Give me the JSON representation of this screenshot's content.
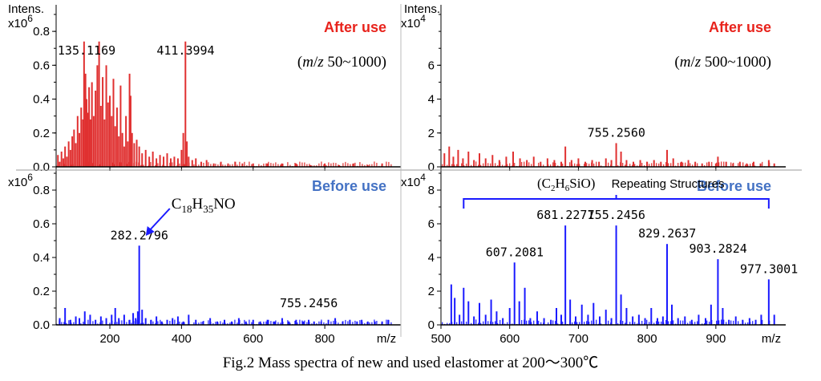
{
  "caption": "Fig.2 Mass spectra of new and used elastomer at 200～300℃",
  "chart_data": [
    {
      "type": "bar",
      "panel": "top-left",
      "condition": "After use",
      "range_note": "(m/z 50~1000)",
      "range_prefix": "(",
      "range_m": "m",
      "range_slash": "/",
      "range_z": "z",
      "range_rest": " 50~1000)",
      "ylabel": "Intens.",
      "y_multiplier": "x10",
      "y_multiplier_exp": "6",
      "xlabel": "m/z",
      "xlim": [
        50,
        990
      ],
      "ylim": [
        0,
        0.9
      ],
      "xticks": [
        "200",
        "400",
        "600",
        "800"
      ],
      "xtick_values": [
        200,
        400,
        600,
        800
      ],
      "yticks": [
        "0.0",
        "0.2",
        "0.4",
        "0.6",
        "0.8"
      ],
      "ytick_values": [
        0.0,
        0.2,
        0.4,
        0.6,
        0.8
      ],
      "color": "#e03030",
      "labels": [
        {
          "text": "135.1169",
          "x": 135.1169,
          "y": 0.8
        },
        {
          "text": "411.3994",
          "x": 411.3994,
          "y": 0.8
        }
      ],
      "peaks": {
        "x": [
          55,
          60,
          65,
          70,
          75,
          80,
          85,
          90,
          95,
          100,
          105,
          110,
          115,
          120,
          125,
          128,
          132,
          135,
          138,
          142,
          146,
          150,
          155,
          160,
          165,
          170,
          175,
          180,
          185,
          190,
          195,
          200,
          205,
          210,
          215,
          220,
          225,
          230,
          235,
          240,
          245,
          250,
          255,
          258,
          262,
          268,
          275,
          282,
          290,
          300,
          310,
          320,
          330,
          340,
          350,
          360,
          370,
          380,
          390,
          400,
          405,
          411,
          415,
          420,
          430,
          440,
          455,
          470,
          490,
          510,
          530,
          550,
          570,
          600,
          640,
          680,
          720,
          760,
          800,
          840,
          880,
          920,
          960
        ],
        "y": [
          0.07,
          0.03,
          0.09,
          0.05,
          0.12,
          0.06,
          0.15,
          0.1,
          0.18,
          0.22,
          0.14,
          0.3,
          0.2,
          0.35,
          0.28,
          0.74,
          0.55,
          0.4,
          0.32,
          0.47,
          0.28,
          0.5,
          0.3,
          0.45,
          0.6,
          0.74,
          0.36,
          0.53,
          0.28,
          0.6,
          0.38,
          0.42,
          0.3,
          0.52,
          0.24,
          0.35,
          0.18,
          0.48,
          0.2,
          0.12,
          0.3,
          0.15,
          0.55,
          0.42,
          0.2,
          0.14,
          0.16,
          0.12,
          0.08,
          0.1,
          0.06,
          0.09,
          0.05,
          0.07,
          0.06,
          0.08,
          0.05,
          0.06,
          0.05,
          0.1,
          0.2,
          0.74,
          0.15,
          0.06,
          0.04,
          0.05,
          0.03,
          0.04,
          0.02,
          0.03,
          0.02,
          0.03,
          0.02,
          0.02,
          0.02,
          0.02,
          0.02,
          0.01,
          0.02,
          0.01,
          0.02,
          0.01,
          0.02
        ]
      }
    },
    {
      "type": "bar",
      "panel": "bottom-left",
      "condition": "Before use",
      "ylabel": "",
      "y_multiplier": "x10",
      "y_multiplier_exp": "6",
      "xlabel": "m/z",
      "xlim": [
        50,
        990
      ],
      "ylim": [
        0,
        0.9
      ],
      "xticks": [
        "200",
        "400",
        "600",
        "800"
      ],
      "xtick_values": [
        200,
        400,
        600,
        800
      ],
      "yticks": [
        "0.0",
        "0.2",
        "0.4",
        "0.6",
        "0.8"
      ],
      "ytick_values": [
        0.0,
        0.2,
        0.4,
        0.6,
        0.8
      ],
      "color": "#1a1aff",
      "labels": [
        {
          "text": "282.2796",
          "x": 282.2796,
          "y": 0.47
        },
        {
          "text": "755.2456",
          "x": 755.2456,
          "y": 0.03
        }
      ],
      "annotation": {
        "formula": "C18H35NO",
        "c": "C",
        "c_sub": "18",
        "h": "H",
        "h_sub": "35",
        "rest": "NO",
        "target_x": 282.2796
      },
      "peaks": {
        "x": [
          60,
          75,
          90,
          105,
          115,
          130,
          145,
          160,
          175,
          190,
          205,
          215,
          225,
          240,
          255,
          265,
          272,
          278,
          282,
          290,
          300,
          315,
          330,
          345,
          360,
          375,
          390,
          405,
          420,
          440,
          460,
          480,
          500,
          520,
          540,
          560,
          580,
          600,
          620,
          640,
          660,
          681,
          700,
          720,
          740,
          755,
          770,
          790,
          810,
          829,
          850,
          870,
          890,
          903,
          920,
          940,
          960,
          977
        ],
        "y": [
          0.04,
          0.1,
          0.03,
          0.05,
          0.04,
          0.08,
          0.06,
          0.03,
          0.05,
          0.04,
          0.06,
          0.1,
          0.04,
          0.06,
          0.03,
          0.07,
          0.04,
          0.08,
          0.47,
          0.09,
          0.04,
          0.03,
          0.05,
          0.02,
          0.03,
          0.04,
          0.05,
          0.02,
          0.06,
          0.03,
          0.02,
          0.04,
          0.02,
          0.03,
          0.02,
          0.04,
          0.02,
          0.03,
          0.02,
          0.03,
          0.02,
          0.04,
          0.02,
          0.03,
          0.02,
          0.03,
          0.02,
          0.02,
          0.03,
          0.04,
          0.02,
          0.03,
          0.02,
          0.03,
          0.02,
          0.02,
          0.02,
          0.03
        ]
      }
    },
    {
      "type": "bar",
      "panel": "top-right",
      "condition": "After use",
      "range_note": "(m/z 500~1000)",
      "range_prefix": "(",
      "range_m": "m",
      "range_slash": "/",
      "range_z": "z",
      "range_rest": " 500~1000)",
      "ylabel": "Intens.",
      "y_multiplier": "x10",
      "y_multiplier_exp": "4",
      "xlabel": "m/z",
      "xlim": [
        500,
        990
      ],
      "ylim": [
        0,
        9
      ],
      "xticks": [
        "500",
        "600",
        "700",
        "800",
        "900"
      ],
      "xtick_values": [
        500,
        600,
        700,
        800,
        900
      ],
      "yticks": [
        "0",
        "2",
        "4",
        "6"
      ],
      "ytick_values": [
        0,
        2,
        4,
        6
      ],
      "color": "#e03030",
      "labels": [
        {
          "text": "755.2560",
          "x": 755.256,
          "y": 1.4
        }
      ],
      "peaks": {
        "x": [
          505,
          512,
          518,
          525,
          532,
          540,
          548,
          556,
          565,
          575,
          585,
          595,
          605,
          615,
          625,
          635,
          645,
          655,
          665,
          675,
          681,
          690,
          700,
          710,
          720,
          730,
          740,
          748,
          755,
          762,
          770,
          780,
          790,
          800,
          810,
          820,
          829,
          838,
          850,
          860,
          870,
          880,
          890,
          900,
          903,
          915,
          925,
          935,
          945,
          955,
          965,
          977,
          985
        ],
        "y": [
          0.8,
          1.2,
          0.6,
          1.0,
          0.5,
          0.9,
          0.4,
          0.8,
          0.5,
          0.7,
          0.4,
          0.6,
          0.9,
          0.5,
          0.4,
          0.6,
          0.3,
          0.5,
          0.4,
          0.3,
          1.2,
          0.4,
          0.5,
          0.3,
          0.4,
          0.3,
          0.5,
          0.4,
          1.4,
          0.9,
          0.4,
          0.3,
          0.4,
          0.3,
          0.4,
          0.3,
          1.0,
          0.5,
          0.3,
          0.4,
          0.3,
          0.2,
          0.3,
          0.2,
          0.6,
          0.3,
          0.2,
          0.3,
          0.2,
          0.3,
          0.2,
          0.4,
          0.2
        ]
      }
    },
    {
      "type": "bar",
      "panel": "bottom-right",
      "condition": "Before use",
      "ylabel": "",
      "y_multiplier": "x10",
      "y_multiplier_exp": "4",
      "xlabel": "m/z",
      "xlim": [
        500,
        990
      ],
      "ylim": [
        0,
        9
      ],
      "xticks": [
        "500",
        "600",
        "700",
        "800",
        "900",
        "m/z"
      ],
      "xtick_values": [
        500,
        600,
        700,
        800,
        900
      ],
      "yticks": [
        "0",
        "2",
        "4",
        "6",
        "8"
      ],
      "ytick_values": [
        0,
        2,
        4,
        6,
        8
      ],
      "color": "#1a1aff",
      "repeat_label": "Repeating Structures",
      "repeat_formula": {
        "open": "(C",
        "c_sub": "2",
        "h": "H",
        "h_sub": "6",
        "rest": "SiO)"
      },
      "repeat_range": [
        533,
        977
      ],
      "labels": [
        {
          "text": "607.2081",
          "x": 607.2081,
          "y": 3.7
        },
        {
          "text": "681.2271",
          "x": 681.2271,
          "y": 5.9
        },
        {
          "text": "755.2456",
          "x": 755.2456,
          "y": 5.9
        },
        {
          "text": "829.2637",
          "x": 829.2637,
          "y": 4.8
        },
        {
          "text": "903.2824",
          "x": 903.2824,
          "y": 3.9
        },
        {
          "text": "977.3001",
          "x": 977.3001,
          "y": 2.7
        }
      ],
      "peaks": {
        "x": [
          515,
          520,
          527,
          533,
          540,
          548,
          556,
          565,
          573,
          581,
          590,
          600,
          607,
          614,
          622,
          630,
          640,
          650,
          660,
          668,
          675,
          681,
          688,
          696,
          705,
          714,
          722,
          731,
          740,
          748,
          755,
          762,
          770,
          779,
          788,
          797,
          806,
          815,
          823,
          829,
          836,
          845,
          855,
          865,
          875,
          885,
          893,
          903,
          910,
          919,
          929,
          939,
          949,
          958,
          966,
          977,
          985
        ],
        "y": [
          2.4,
          1.6,
          0.6,
          2.2,
          1.4,
          0.5,
          1.3,
          0.6,
          1.5,
          0.8,
          0.4,
          1.0,
          3.7,
          1.4,
          2.2,
          0.4,
          0.8,
          0.4,
          0.3,
          1.0,
          0.6,
          5.9,
          1.5,
          0.5,
          1.2,
          0.6,
          1.3,
          0.5,
          0.9,
          0.4,
          5.9,
          1.8,
          1.0,
          0.5,
          0.6,
          0.4,
          1.0,
          0.4,
          0.5,
          4.8,
          1.2,
          0.4,
          0.5,
          0.3,
          0.6,
          0.4,
          1.2,
          3.9,
          1.0,
          0.3,
          0.5,
          0.3,
          0.4,
          0.3,
          0.6,
          2.7,
          0.6
        ]
      }
    }
  ]
}
